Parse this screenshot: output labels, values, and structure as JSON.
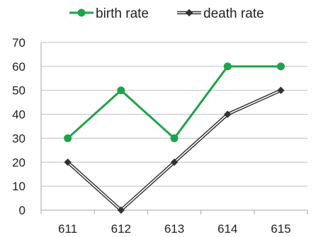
{
  "chart_data": {
    "type": "line",
    "categories": [
      "611",
      "612",
      "613",
      "614",
      "615"
    ],
    "series": [
      {
        "name": "birth rate",
        "values": [
          30,
          50,
          30,
          60,
          60
        ],
        "color": "#1fa34a",
        "marker": "circle"
      },
      {
        "name": "death rate",
        "values": [
          20,
          0,
          20,
          40,
          50
        ],
        "color": "#333333",
        "marker": "diamond"
      }
    ],
    "ylim": [
      0,
      70
    ],
    "yticks": [
      0,
      10,
      20,
      30,
      40,
      50,
      60,
      70
    ],
    "grid": true,
    "legend": "top-center"
  }
}
